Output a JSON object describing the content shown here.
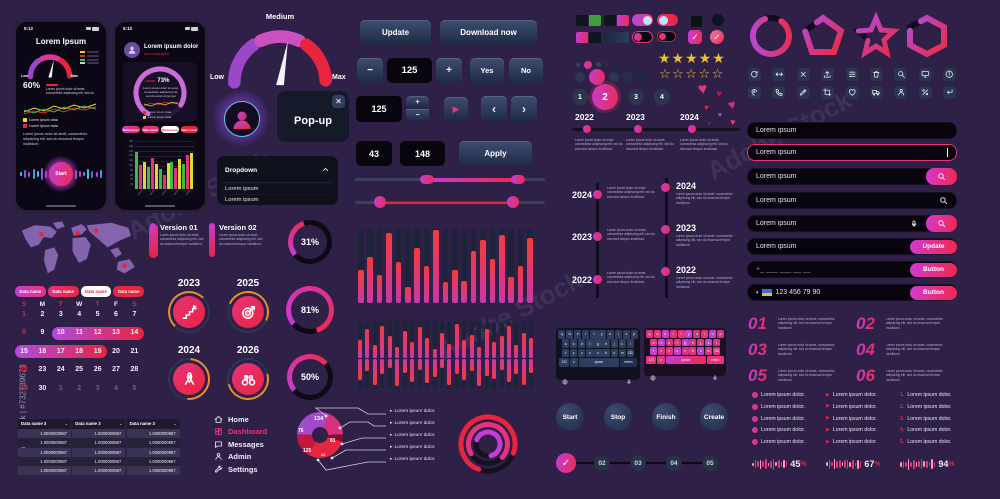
{
  "watermark": {
    "side": "Adobe Stock | #732739673",
    "diag": "Adobe Stock"
  },
  "lorem": {
    "tiny": "Lorem ipsum dolor sit amet, consectetur adipiscing elit, sed do eiusmod tempor incididunt.",
    "item": "Lorem ipsum dolor.",
    "value": "Lorem ipsum",
    "legend": "Lorem ipsum data"
  },
  "phone1": {
    "time": "5:12",
    "title": "Lorem Ipsum",
    "low": "Low",
    "max": "Max",
    "percent": "60%",
    "start": "Start",
    "legend": [
      "Lorem ipsum data",
      "Lorem ipsum data"
    ],
    "wave": [
      4,
      8,
      5,
      10,
      6,
      12,
      7,
      5,
      9,
      4,
      8,
      11,
      5,
      9,
      6,
      4,
      10,
      7,
      5,
      8
    ]
  },
  "phone2": {
    "time": "5:13",
    "name": "Lorem ipsum dolor",
    "subtitle": "sed consectetur",
    "center_label": "Lorem",
    "percent": "73%",
    "buttons": [
      "Data menu",
      "Data menu",
      "Data menu",
      "Data menu"
    ],
    "y_labels": [
      "150",
      "140",
      "130",
      "120",
      "110",
      "100",
      "90",
      "80",
      "70",
      "60"
    ],
    "x_label": "Lorem",
    "groups": [
      [
        0.78,
        0.5,
        0.56
      ],
      [
        0.46,
        0.64,
        0.52
      ],
      [
        0.42,
        0.3,
        0.54
      ],
      [
        0.56,
        0.44,
        0.62
      ],
      [
        0.52,
        0.7,
        0.76
      ]
    ]
  },
  "gauge": {
    "low": "Low",
    "medium": "Medium",
    "max": "Max"
  },
  "popup": {
    "title": "Pop-up",
    "close": "✕"
  },
  "dropdown": {
    "title": "Dropdown",
    "items": [
      "Lorem ipsum",
      "Lorem ipsum"
    ]
  },
  "controls": {
    "update": "Update",
    "download": "Download now",
    "minus": "−",
    "plus": "+",
    "counter": "125",
    "yes": "Yes",
    "no": "No",
    "spin_value": "125",
    "play": "▶",
    "prev": "‹",
    "next": "›",
    "min": "43",
    "max": "148",
    "apply": "Apply"
  },
  "states": {
    "check": "✓"
  },
  "steps": [
    "1",
    "2",
    "3",
    "4"
  ],
  "stars": {
    "filled": "★★★★★",
    "empty": "☆☆☆☆☆"
  },
  "timeline_h": [
    {
      "year": "2022"
    },
    {
      "year": "2023"
    },
    {
      "year": "2024"
    }
  ],
  "timeline_left": [
    {
      "year": "2024"
    },
    {
      "year": "2023"
    },
    {
      "year": "2022"
    }
  ],
  "timeline_right": [
    {
      "year": "2024"
    },
    {
      "year": "2023"
    },
    {
      "year": "2022"
    }
  ],
  "icon_grid": [
    "refresh",
    "move-horizontal",
    "close",
    "upload",
    "sliders",
    "trash",
    "search",
    "monitor",
    "info",
    "location-pin",
    "phone",
    "pencil",
    "crop",
    "heart",
    "truck",
    "user",
    "percent",
    "enter"
  ],
  "inputs": {
    "rows": [
      {
        "value": "Lorem ipsum",
        "type": "plain"
      },
      {
        "value": "Lorem ipsum",
        "type": "focused"
      },
      {
        "value": "Lorem ipsum",
        "type": "search-button"
      },
      {
        "value": "Lorem ipsum",
        "type": "search-icon"
      },
      {
        "value": "Lorem ipsum",
        "type": "mic-search"
      },
      {
        "value": "Lorem ipsum",
        "type": "action",
        "button": "Update"
      },
      {
        "value": "+_ ___ ___ __ __",
        "type": "action",
        "button": "Button"
      },
      {
        "value": "123 456 79 90",
        "type": "flag",
        "button": "Button"
      }
    ]
  },
  "numbered": [
    {
      "n": "01"
    },
    {
      "n": "02"
    },
    {
      "n": "03"
    },
    {
      "n": "04"
    },
    {
      "n": "05"
    },
    {
      "n": "06"
    }
  ],
  "lists": {
    "numbers": [
      "1.",
      "2.",
      "3.",
      "4.",
      "5."
    ],
    "rows": 5
  },
  "waves": [
    {
      "percent": "45",
      "suffix": "%"
    },
    {
      "percent": "67",
      "suffix": "%"
    },
    {
      "percent": "94",
      "suffix": "%"
    }
  ],
  "round_buttons": [
    "Start",
    "Stop",
    "Finish",
    "Create"
  ],
  "progress": {
    "check": "✓",
    "steps": [
      "02",
      "03",
      "04",
      "05"
    ]
  },
  "keyboard": {
    "rows": [
      [
        "q",
        "w",
        "e",
        "r",
        "t",
        "y",
        "u",
        "i",
        "o",
        "p"
      ],
      [
        "a",
        "s",
        "d",
        "f",
        "g",
        "h",
        "j",
        "k",
        "l"
      ],
      [
        "⇧",
        "z",
        "x",
        "c",
        "v",
        "b",
        "n",
        "m",
        "⌫"
      ]
    ],
    "bottom": [
      "123",
      "☺",
      "space",
      "return"
    ]
  },
  "versions": [
    {
      "title": "Version 01"
    },
    {
      "title": "Version 02"
    }
  ],
  "year_badges": [
    {
      "year": "2023",
      "icon": "stairs"
    },
    {
      "year": "2025",
      "icon": "target"
    },
    {
      "year": "2024",
      "icon": "rocket"
    },
    {
      "year": "2026",
      "icon": "binoculars"
    }
  ],
  "rings": [
    {
      "label": "31%",
      "value": 31
    },
    {
      "label": "81%",
      "value": 81
    },
    {
      "label": "50%",
      "value": 50
    }
  ],
  "calendar": {
    "tabs": [
      {
        "label": "Data name"
      },
      {
        "label": "Data name"
      },
      {
        "label": "Data name",
        "active": true
      },
      {
        "label": "Data name"
      }
    ],
    "weekdays": [
      "S",
      "M",
      "T",
      "W",
      "T",
      "F",
      "S"
    ],
    "weeks": [
      [
        "1",
        "2",
        "3",
        "4",
        "5",
        "6",
        "7"
      ],
      [
        "8",
        "9",
        "10",
        "11",
        "12",
        "13",
        "14"
      ],
      [
        "15",
        "16",
        "17",
        "18",
        "19",
        "20",
        "21"
      ],
      [
        "22",
        "23",
        "24",
        "25",
        "26",
        "27",
        "28"
      ],
      [
        "29",
        "30",
        "1",
        "2",
        "3",
        "4",
        "5"
      ]
    ],
    "pills": [
      {
        "week": 1,
        "from": 2,
        "to": 6
      },
      {
        "week": 2,
        "from": 0,
        "to": 4
      }
    ],
    "dim_week": 4,
    "dim_from": 2
  },
  "table": {
    "header": "Data name 3",
    "caret": "⌄",
    "cols": 3,
    "rows": 5,
    "value": "1.0000000987"
  },
  "menu": [
    {
      "label": "Home",
      "icon": "home"
    },
    {
      "label": "Dashboard",
      "icon": "dashboard",
      "active": true
    },
    {
      "label": "Messages",
      "icon": "messages"
    },
    {
      "label": "Admin",
      "icon": "user"
    },
    {
      "label": "Settings",
      "icon": "wrench"
    }
  ],
  "pie": {
    "values": [
      134,
      81,
      22,
      125,
      76
    ],
    "colors": [
      "#a04cc9",
      "#d6317f",
      "#7e1127",
      "#e8243f",
      "#c2173c"
    ],
    "labels": [
      "134",
      "81",
      "22",
      "125",
      "76"
    ],
    "arrow": "▸",
    "callouts": [
      "Lorem ipsum dolor.",
      "Lorem ipsum dolor.",
      "Lorem ipsum dolor.",
      "Lorem ipsum dolor.",
      "Lorem ipsum dolor."
    ]
  },
  "charts": {
    "main_bars": [
      0.45,
      0.62,
      0.38,
      0.95,
      0.55,
      0.22,
      0.75,
      0.5,
      0.98,
      0.28,
      0.45,
      0.3,
      0.7,
      0.85,
      0.6,
      0.92,
      0.35,
      0.5,
      0.88
    ],
    "eq_top": [
      0.5,
      0.8,
      0.35,
      0.9,
      0.6,
      0.3,
      0.75,
      0.45,
      0.85,
      0.55,
      0.25,
      0.7,
      0.4,
      0.95,
      0.5,
      0.65,
      0.3,
      0.8,
      0.45,
      0.6,
      0.9,
      0.35,
      0.7,
      0.55
    ],
    "eq_bottom": [
      0.7,
      0.4,
      0.85,
      0.5,
      0.3,
      0.9,
      0.45,
      0.75,
      0.35,
      0.8,
      0.6,
      0.3,
      0.85,
      0.5,
      0.7,
      0.4,
      0.9,
      0.55,
      0.65,
      0.35,
      0.75,
      0.5,
      0.85,
      0.45
    ],
    "wave_small": [
      3,
      7,
      4,
      9,
      5,
      8,
      3,
      6,
      9,
      4,
      7,
      3,
      8,
      5
    ]
  },
  "colors": {
    "accent_from": "#c43dd4",
    "accent_to": "#ee2a52",
    "red": "#e8243f",
    "pink": "#e8327c",
    "purple": "#9c46c9",
    "gold": "#eebf2f",
    "green": "#3dbb4a",
    "yellow": "#e3d832",
    "cyan": "#35c8e8"
  }
}
